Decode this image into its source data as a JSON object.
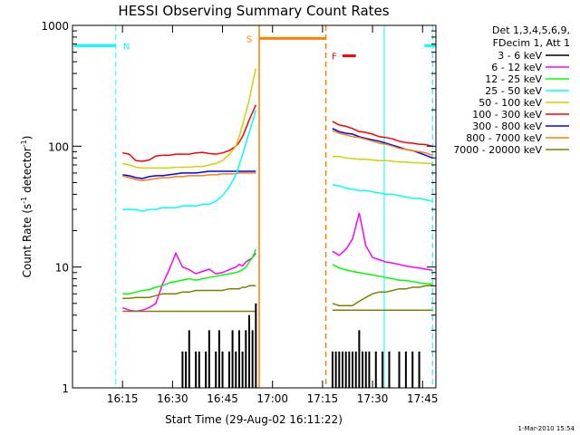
{
  "chart_data": {
    "type": "line",
    "title": "HESSI Observing Summary Count Rates",
    "xlabel": "Start Time (29-Aug-02 16:11:22)",
    "ylabel_main": "Count Rate (s",
    "ylabel_sup1": "-1",
    "ylabel_mid": " detector",
    "ylabel_sup2": "-1",
    "ylabel_end": ")",
    "yscale": "log",
    "ylim": [
      1,
      1000
    ],
    "xlim_min": [
      16.0,
      17.8167
    ],
    "x_ticks": [
      {
        "min": 15,
        "label": "16:15"
      },
      {
        "min": 30,
        "label": "16:30"
      },
      {
        "min": 45,
        "label": "16:45"
      },
      {
        "min": 60,
        "label": "17:00"
      },
      {
        "min": 75,
        "label": "17:15"
      },
      {
        "min": 90,
        "label": "17:30"
      },
      {
        "min": 105,
        "label": "17:45"
      }
    ],
    "y_ticks": [
      {
        "v": 1,
        "label": "1"
      },
      {
        "v": 10,
        "label": "10"
      },
      {
        "v": 100,
        "label": "100"
      },
      {
        "v": 1000,
        "label": "1000"
      }
    ],
    "legend": {
      "header": [
        "Det 1,3,4,5,6,9,",
        "FDecim 1, Att 1"
      ],
      "placement": "right",
      "entries": [
        {
          "label": "3 - 6 keV",
          "color": "#000000"
        },
        {
          "label": "6 - 12 keV",
          "color": "#ff00ff"
        },
        {
          "label": "12 - 25 keV",
          "color": "#00ff00"
        },
        {
          "label": "25 - 50 keV",
          "color": "#00ffff"
        },
        {
          "label": "50 - 100 keV",
          "color": "#d2d200"
        },
        {
          "label": "100 - 300 keV",
          "color": "#ff0000"
        },
        {
          "label": "300 - 800 keV",
          "color": "#0000ff"
        },
        {
          "label": "800 - 7000 keV",
          "color": "#ff8000"
        },
        {
          "label": "7000 - 20000 keV",
          "color": "#808000"
        }
      ]
    },
    "segments": [
      {
        "name": "pre",
        "x": [
          15,
          17,
          19,
          21,
          23,
          25,
          27,
          29,
          31,
          33,
          35,
          37,
          39,
          41,
          43,
          45,
          47,
          49,
          50,
          51,
          52,
          53,
          54,
          55
        ]
      },
      {
        "name": "post",
        "x": [
          78,
          80,
          82,
          84,
          86,
          88,
          90,
          92,
          94,
          96,
          98,
          100,
          102,
          104,
          106,
          108
        ]
      }
    ],
    "series": [
      {
        "color": "#ff0000",
        "pre": [
          88,
          86,
          76,
          75,
          77,
          83,
          84,
          84,
          86,
          86,
          86,
          88,
          89,
          87,
          86,
          88,
          92,
          100,
          108,
          120,
          140,
          165,
          190,
          220
        ],
        "post": [
          160,
          150,
          146,
          140,
          132,
          130,
          126,
          120,
          118,
          115,
          110,
          107,
          106,
          104,
          103,
          100
        ]
      },
      {
        "color": "#0000ff",
        "pre": [
          58,
          57,
          55,
          54,
          56,
          57,
          57,
          58,
          59,
          60,
          60,
          60,
          61,
          62,
          62,
          62,
          62,
          62,
          62,
          62,
          62,
          62,
          62,
          62
        ],
        "post": [
          140,
          132,
          128,
          126,
          120,
          116,
          113,
          110,
          106,
          102,
          98,
          94,
          92,
          88,
          84,
          80
        ]
      },
      {
        "color": "#ff8000",
        "pre": [
          57,
          55,
          53,
          52,
          53,
          54,
          55,
          55,
          56,
          56,
          57,
          57,
          57,
          58,
          58,
          59,
          59,
          59,
          60,
          60,
          60,
          60,
          60,
          60
        ],
        "post": [
          135,
          128,
          124,
          120,
          118,
          114,
          110,
          106,
          104,
          100,
          96,
          94,
          92,
          90,
          88,
          84
        ]
      },
      {
        "color": "#d2d200",
        "pre": [
          72,
          70,
          67,
          66,
          66,
          66,
          66,
          66,
          67,
          67,
          67,
          68,
          68,
          70,
          72,
          76,
          85,
          100,
          120,
          150,
          190,
          240,
          330,
          440
        ],
        "post": [
          82,
          82,
          80,
          79,
          78,
          78,
          77,
          76,
          76,
          75,
          74,
          74,
          73,
          73,
          72,
          72
        ]
      },
      {
        "color": "#00ffff",
        "pre": [
          30,
          30,
          30,
          29,
          30,
          30,
          31,
          31,
          31,
          32,
          32,
          32,
          33,
          33,
          35,
          39,
          46,
          58,
          70,
          85,
          105,
          130,
          160,
          200
        ],
        "post": [
          48,
          47,
          45,
          44,
          43,
          43,
          42,
          41,
          40,
          40,
          39,
          38,
          37,
          37,
          36,
          35
        ]
      },
      {
        "color": "#ff00ff",
        "pre": [
          4.6,
          4.4,
          4.3,
          4.4,
          4.6,
          5.0,
          7.2,
          9.5,
          13,
          10,
          9.5,
          8.8,
          9.2,
          9.6,
          8.8,
          9.0,
          9.5,
          10,
          10.5,
          10.2,
          11,
          11.5,
          12,
          13
        ],
        "post": [
          13.5,
          12.5,
          14,
          17,
          28,
          15,
          12,
          11.5,
          11,
          10.8,
          10.5,
          10.2,
          10,
          9.8,
          9.6,
          9.4
        ]
      },
      {
        "color": "#00ff00",
        "pre": [
          6,
          6,
          6.2,
          6.4,
          6.5,
          6.8,
          7,
          7.4,
          7.6,
          7.8,
          8,
          7.8,
          8,
          8.2,
          8.4,
          8.6,
          8.8,
          9,
          9.2,
          9.5,
          10,
          11,
          12,
          14
        ],
        "post": [
          10.5,
          9.8,
          9.5,
          9.2,
          9,
          8.8,
          8.6,
          8.4,
          8.2,
          8,
          7.8,
          7.7,
          7.6,
          7.4,
          7.3,
          7.2
        ]
      },
      {
        "color": "#808000",
        "pre": [
          5.5,
          5.5,
          5.6,
          5.6,
          5.6,
          5.8,
          6.0,
          6.0,
          6.0,
          6.2,
          6.2,
          6.4,
          6.4,
          6.4,
          6.4,
          6.4,
          6.6,
          6.6,
          6.6,
          6.8,
          6.8,
          7.0,
          7.0,
          7.0
        ],
        "post": [
          5.0,
          4.8,
          4.8,
          4.8,
          5.2,
          5.6,
          6.0,
          6.2,
          6.2,
          6.4,
          6.6,
          6.6,
          6.8,
          6.8,
          7.0,
          7.0
        ]
      },
      {
        "color": "#808000",
        "pre": [
          4.3,
          4.3,
          4.3,
          4.3,
          4.3,
          4.3,
          4.3,
          4.3,
          4.3,
          4.3,
          4.3,
          4.3,
          4.3,
          4.3,
          4.3,
          4.3,
          4.3,
          4.3,
          4.3,
          4.3,
          4.3,
          4.3,
          4.3,
          4.3
        ],
        "post": [
          4.4,
          4.4,
          4.4,
          4.4,
          4.4,
          4.4,
          4.4,
          4.4,
          4.4,
          4.4,
          4.4,
          4.4,
          4.4,
          4.4,
          4.4,
          4.4
        ]
      }
    ],
    "low_count_spikes": {
      "color": "#000000",
      "pre": [
        {
          "x": 33,
          "v": 2
        },
        {
          "x": 34,
          "v": 2
        },
        {
          "x": 35,
          "v": 3
        },
        {
          "x": 37,
          "v": 2
        },
        {
          "x": 38,
          "v": 2
        },
        {
          "x": 40,
          "v": 2
        },
        {
          "x": 41,
          "v": 3
        },
        {
          "x": 43,
          "v": 2
        },
        {
          "x": 44,
          "v": 3
        },
        {
          "x": 45,
          "v": 2
        },
        {
          "x": 47,
          "v": 2
        },
        {
          "x": 48,
          "v": 3
        },
        {
          "x": 49,
          "v": 2
        },
        {
          "x": 50,
          "v": 3
        },
        {
          "x": 51,
          "v": 2
        },
        {
          "x": 52,
          "v": 3
        },
        {
          "x": 53,
          "v": 4
        },
        {
          "x": 54,
          "v": 3
        },
        {
          "x": 55,
          "v": 5
        }
      ],
      "post": [
        {
          "x": 78,
          "v": 2
        },
        {
          "x": 79,
          "v": 2
        },
        {
          "x": 80,
          "v": 2
        },
        {
          "x": 81,
          "v": 2
        },
        {
          "x": 82,
          "v": 2
        },
        {
          "x": 83,
          "v": 2
        },
        {
          "x": 84,
          "v": 2
        },
        {
          "x": 85,
          "v": 2
        },
        {
          "x": 86,
          "v": 3
        },
        {
          "x": 87,
          "v": 2
        },
        {
          "x": 88,
          "v": 2
        },
        {
          "x": 89,
          "v": 2
        },
        {
          "x": 91,
          "v": 2
        },
        {
          "x": 93,
          "v": 2
        },
        {
          "x": 95,
          "v": 2
        },
        {
          "x": 98,
          "v": 2
        },
        {
          "x": 100,
          "v": 2
        },
        {
          "x": 102,
          "v": 2
        },
        {
          "x": 104,
          "v": 2
        }
      ]
    },
    "annotations": {
      "night_label": "N",
      "saa_label": "S",
      "flare_label": "F",
      "night_color": "#00ffff",
      "saa_color": "#ff8000",
      "flare_color": "#ff0000",
      "night_bars": [
        [
          0,
          13
        ],
        [
          105,
          109
        ]
      ],
      "night_dashed": [
        13,
        108
      ],
      "night_solid": [
        93.5
      ],
      "saa_bar": [
        56,
        76
      ],
      "saa_solid": [
        56
      ],
      "saa_dashed": [
        76
      ],
      "flare_bar": [
        81,
        85
      ],
      "night_bar_value": 680,
      "saa_bar_value": 780,
      "flare_bar_value": 560
    },
    "footer": "1-Mar-2010 15:54",
    "grid": false
  }
}
